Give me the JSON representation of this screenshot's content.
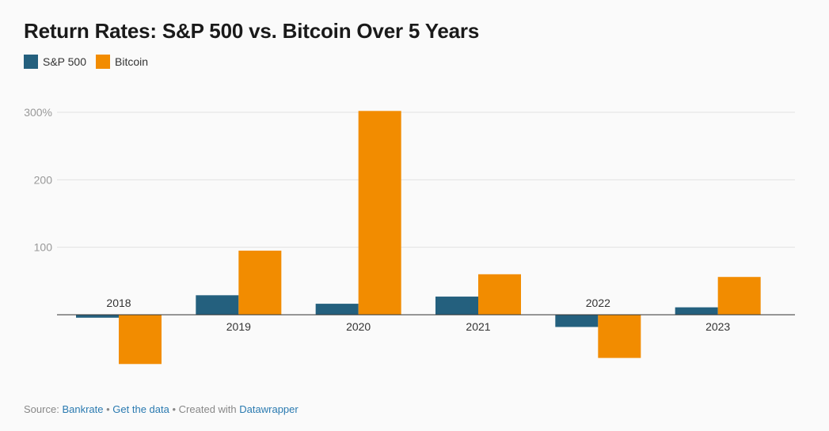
{
  "chart_data": {
    "type": "bar",
    "title": "Return Rates: S&P 500 vs. Bitcoin Over 5 Years",
    "categories": [
      "2018",
      "2019",
      "2020",
      "2021",
      "2022",
      "2023"
    ],
    "series": [
      {
        "name": "S&P 500",
        "color": "#24607e",
        "values": [
          -4.4,
          28.9,
          16.3,
          26.9,
          -18.1,
          11.0
        ]
      },
      {
        "name": "Bitcoin",
        "color": "#f28c00",
        "values": [
          -73,
          95,
          302,
          60,
          -64,
          56
        ]
      }
    ],
    "yticks": [
      {
        "value": 100,
        "label": "100"
      },
      {
        "value": 200,
        "label": "200"
      },
      {
        "value": 300,
        "label": "300%"
      }
    ],
    "ylim": [
      -90,
      310
    ],
    "grid": true,
    "legend": "top-left"
  },
  "footer": {
    "source_prefix": "Source:",
    "source_name": "Bankrate",
    "sep1": "•",
    "data_link": "Get the data",
    "sep2": "•",
    "created_with": "Created with",
    "tool": "Datawrapper"
  }
}
